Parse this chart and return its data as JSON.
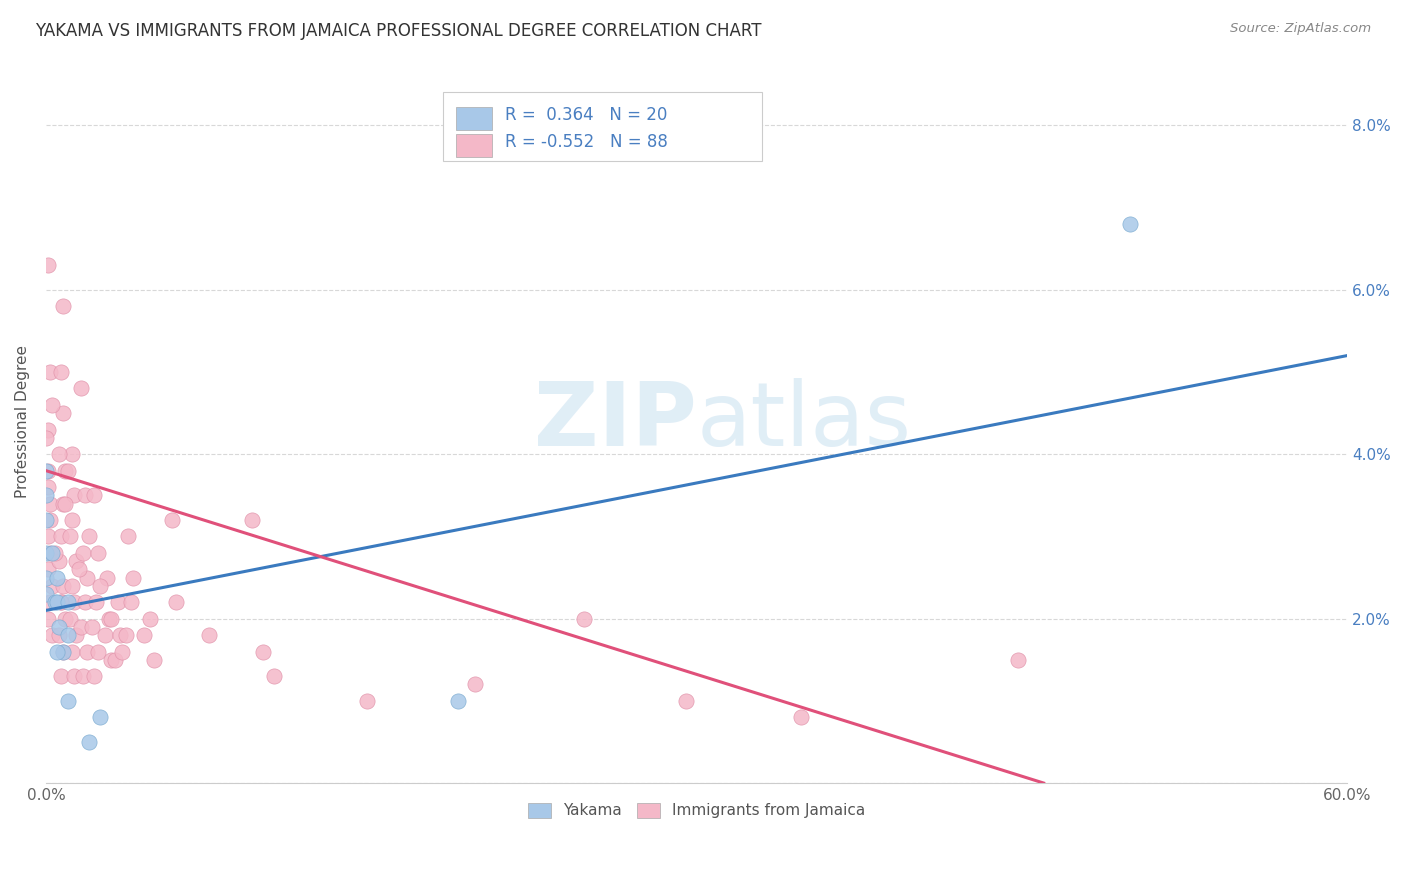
{
  "title": "YAKAMA VS IMMIGRANTS FROM JAMAICA PROFESSIONAL DEGREE CORRELATION CHART",
  "source": "Source: ZipAtlas.com",
  "ylabel": "Professional Degree",
  "xlim": [
    0.0,
    0.6
  ],
  "ylim": [
    0.0,
    0.088
  ],
  "xticks": [
    0.0,
    0.1,
    0.2,
    0.3,
    0.4,
    0.5,
    0.6
  ],
  "xtick_labels": [
    "0.0%",
    "",
    "",
    "",
    "",
    "",
    "60.0%"
  ],
  "yticks": [
    0.0,
    0.02,
    0.04,
    0.06,
    0.08
  ],
  "ytick_labels_right": [
    "",
    "2.0%",
    "4.0%",
    "6.0%",
    "8.0%"
  ],
  "blue_scatter_color": "#a8c8e8",
  "pink_scatter_color": "#f4b8c8",
  "blue_line_color": "#3a7abf",
  "pink_line_color": "#e0507a",
  "legend_text_color": "#4a7fc1",
  "grid_color": "#d8d8d8",
  "watermark_color": "#c8e0f0",
  "yakama_points": [
    [
      0.0,
      0.038
    ],
    [
      0.0,
      0.035
    ],
    [
      0.0,
      0.032
    ],
    [
      0.0,
      0.028
    ],
    [
      0.0,
      0.025
    ],
    [
      0.0,
      0.023
    ],
    [
      0.003,
      0.028
    ],
    [
      0.004,
      0.022
    ],
    [
      0.005,
      0.025
    ],
    [
      0.005,
      0.022
    ],
    [
      0.006,
      0.019
    ],
    [
      0.008,
      0.016
    ],
    [
      0.01,
      0.022
    ],
    [
      0.01,
      0.018
    ],
    [
      0.02,
      0.005
    ],
    [
      0.025,
      0.008
    ],
    [
      0.19,
      0.01
    ],
    [
      0.5,
      0.068
    ],
    [
      0.01,
      0.01
    ],
    [
      0.005,
      0.016
    ]
  ],
  "jamaica_points": [
    [
      0.002,
      0.05
    ],
    [
      0.001,
      0.043
    ],
    [
      0.0,
      0.042
    ],
    [
      0.001,
      0.038
    ],
    [
      0.001,
      0.036
    ],
    [
      0.002,
      0.034
    ],
    [
      0.002,
      0.032
    ],
    [
      0.001,
      0.03
    ],
    [
      0.002,
      0.028
    ],
    [
      0.001,
      0.026
    ],
    [
      0.003,
      0.024
    ],
    [
      0.002,
      0.022
    ],
    [
      0.001,
      0.02
    ],
    [
      0.003,
      0.018
    ],
    [
      0.001,
      0.063
    ],
    [
      0.008,
      0.058
    ],
    [
      0.007,
      0.05
    ],
    [
      0.008,
      0.045
    ],
    [
      0.009,
      0.038
    ],
    [
      0.008,
      0.034
    ],
    [
      0.007,
      0.03
    ],
    [
      0.006,
      0.027
    ],
    [
      0.008,
      0.024
    ],
    [
      0.007,
      0.022
    ],
    [
      0.009,
      0.02
    ],
    [
      0.006,
      0.018
    ],
    [
      0.008,
      0.016
    ],
    [
      0.007,
      0.013
    ],
    [
      0.012,
      0.04
    ],
    [
      0.013,
      0.035
    ],
    [
      0.011,
      0.03
    ],
    [
      0.014,
      0.027
    ],
    [
      0.012,
      0.024
    ],
    [
      0.013,
      0.022
    ],
    [
      0.011,
      0.02
    ],
    [
      0.014,
      0.018
    ],
    [
      0.012,
      0.016
    ],
    [
      0.013,
      0.013
    ],
    [
      0.016,
      0.048
    ],
    [
      0.018,
      0.035
    ],
    [
      0.017,
      0.028
    ],
    [
      0.019,
      0.025
    ],
    [
      0.018,
      0.022
    ],
    [
      0.016,
      0.019
    ],
    [
      0.019,
      0.016
    ],
    [
      0.017,
      0.013
    ],
    [
      0.022,
      0.035
    ],
    [
      0.024,
      0.028
    ],
    [
      0.023,
      0.022
    ],
    [
      0.021,
      0.019
    ],
    [
      0.024,
      0.016
    ],
    [
      0.022,
      0.013
    ],
    [
      0.028,
      0.025
    ],
    [
      0.029,
      0.02
    ],
    [
      0.027,
      0.018
    ],
    [
      0.03,
      0.015
    ],
    [
      0.033,
      0.022
    ],
    [
      0.034,
      0.018
    ],
    [
      0.032,
      0.015
    ],
    [
      0.038,
      0.03
    ],
    [
      0.039,
      0.022
    ],
    [
      0.037,
      0.018
    ],
    [
      0.048,
      0.02
    ],
    [
      0.058,
      0.032
    ],
    [
      0.075,
      0.018
    ],
    [
      0.095,
      0.032
    ],
    [
      0.1,
      0.016
    ],
    [
      0.105,
      0.013
    ],
    [
      0.148,
      0.01
    ],
    [
      0.198,
      0.012
    ],
    [
      0.248,
      0.02
    ],
    [
      0.01,
      0.038
    ],
    [
      0.012,
      0.032
    ],
    [
      0.015,
      0.026
    ],
    [
      0.02,
      0.03
    ],
    [
      0.025,
      0.024
    ],
    [
      0.03,
      0.02
    ],
    [
      0.035,
      0.016
    ],
    [
      0.04,
      0.025
    ],
    [
      0.045,
      0.018
    ],
    [
      0.05,
      0.015
    ],
    [
      0.06,
      0.022
    ],
    [
      0.295,
      0.01
    ],
    [
      0.348,
      0.008
    ],
    [
      0.448,
      0.015
    ],
    [
      0.003,
      0.046
    ],
    [
      0.006,
      0.04
    ],
    [
      0.009,
      0.034
    ],
    [
      0.004,
      0.028
    ],
    [
      0.007,
      0.022
    ]
  ],
  "blue_line_x": [
    0.0,
    0.6
  ],
  "blue_line_y": [
    0.021,
    0.052
  ],
  "pink_line_x": [
    0.0,
    0.46
  ],
  "pink_line_y": [
    0.038,
    0.0
  ]
}
